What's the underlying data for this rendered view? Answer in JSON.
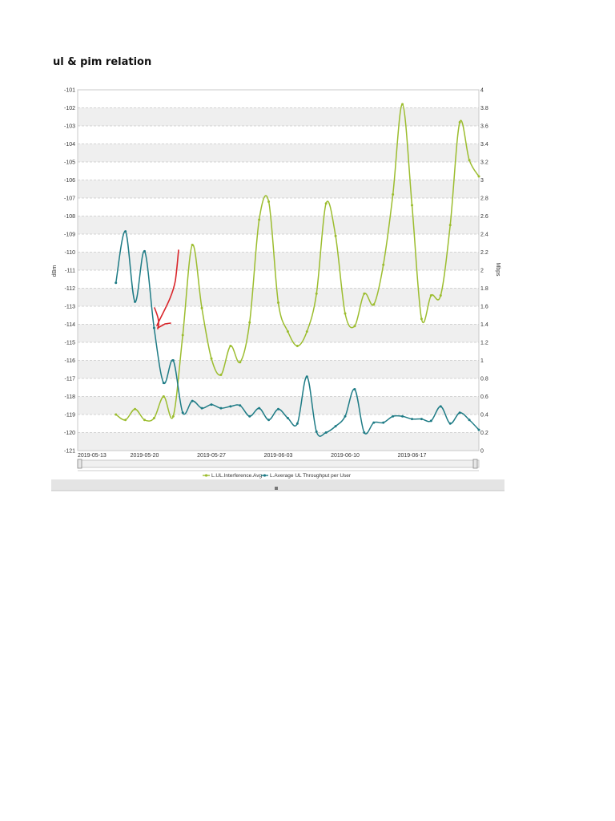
{
  "page_title": "ul & pim relation",
  "chart_data": {
    "type": "line",
    "title": "ul & pim relation",
    "x_labels": [
      "2019-05-13",
      "2019-05-20",
      "2019-05-27",
      "2019-06-03",
      "2019-06-10",
      "2019-06-17"
    ],
    "x_domain_days": [
      0,
      42
    ],
    "ylabel_left": "dBm",
    "ylabel_right": "Mbps",
    "ylim_left": [
      -121,
      -101
    ],
    "ylim_right": [
      0,
      4
    ],
    "left_ticks": [
      "-101",
      "-102",
      "-103",
      "-104",
      "-105",
      "-106",
      "-107",
      "-108",
      "-109",
      "-110",
      "-111",
      "-112",
      "-113",
      "-114",
      "-115",
      "-116",
      "-117",
      "-118",
      "-119",
      "-120",
      "-121"
    ],
    "right_ticks": [
      "4",
      "3.8",
      "3.6",
      "3.4",
      "3.2",
      "3",
      "2.8",
      "2.6",
      "2.4",
      "2.2",
      "2",
      "1.8",
      "1.6",
      "1.4",
      "1.2",
      "1",
      "0.8",
      "0.6",
      "0.4",
      "0.2",
      "0"
    ],
    "grid": true,
    "series": [
      {
        "name": "L.UL.Interference.Avg",
        "axis": "left",
        "color": "#9cbd2f",
        "x": [
          4,
          5,
          6,
          7,
          8,
          9,
          10,
          11,
          12,
          13,
          14,
          15,
          16,
          17,
          18,
          19,
          20,
          21,
          22,
          23,
          24,
          25,
          26,
          27,
          28,
          29,
          30,
          31,
          32,
          33,
          34,
          35,
          36,
          37,
          38,
          39,
          40,
          41,
          42
        ],
        "values": [
          -119.0,
          -119.3,
          -118.7,
          -119.3,
          -119.2,
          -118.0,
          -119.1,
          -114.6,
          -109.6,
          -113.1,
          -115.9,
          -116.8,
          -115.2,
          -116.1,
          -113.9,
          -108.2,
          -107.2,
          -112.8,
          -114.4,
          -115.2,
          -114.4,
          -112.3,
          -107.3,
          -109.1,
          -113.4,
          -114.1,
          -112.3,
          -112.9,
          -110.7,
          -106.8,
          -101.8,
          -107.4,
          -113.7,
          -112.4,
          -112.4,
          -108.5,
          -102.8,
          -104.9,
          -105.8
        ]
      },
      {
        "name": "L.Average UL Throughput per User",
        "axis": "right",
        "color": "#1f7c86",
        "x": [
          4,
          5,
          6,
          7,
          8,
          9,
          10,
          11,
          12,
          13,
          14,
          15,
          16,
          17,
          18,
          19,
          20,
          21,
          22,
          23,
          24,
          25,
          26,
          27,
          28,
          29,
          30,
          31,
          32,
          33,
          34,
          35,
          36,
          37,
          38,
          39,
          40,
          41,
          42
        ],
        "values": [
          1.86,
          2.43,
          1.65,
          2.21,
          1.36,
          0.75,
          1.0,
          0.42,
          0.55,
          0.47,
          0.51,
          0.47,
          0.49,
          0.5,
          0.38,
          0.47,
          0.34,
          0.46,
          0.36,
          0.3,
          0.82,
          0.21,
          0.2,
          0.27,
          0.38,
          0.68,
          0.2,
          0.31,
          0.31,
          0.38,
          0.38,
          0.35,
          0.35,
          0.33,
          0.49,
          0.3,
          0.42,
          0.34,
          0.23
        ]
      }
    ],
    "legend": [
      "L.UL.Interference.Avg",
      "L.Average UL Throughput per User"
    ],
    "legend_position": "bottom",
    "annotation": "red hand-drawn marker stroke"
  }
}
